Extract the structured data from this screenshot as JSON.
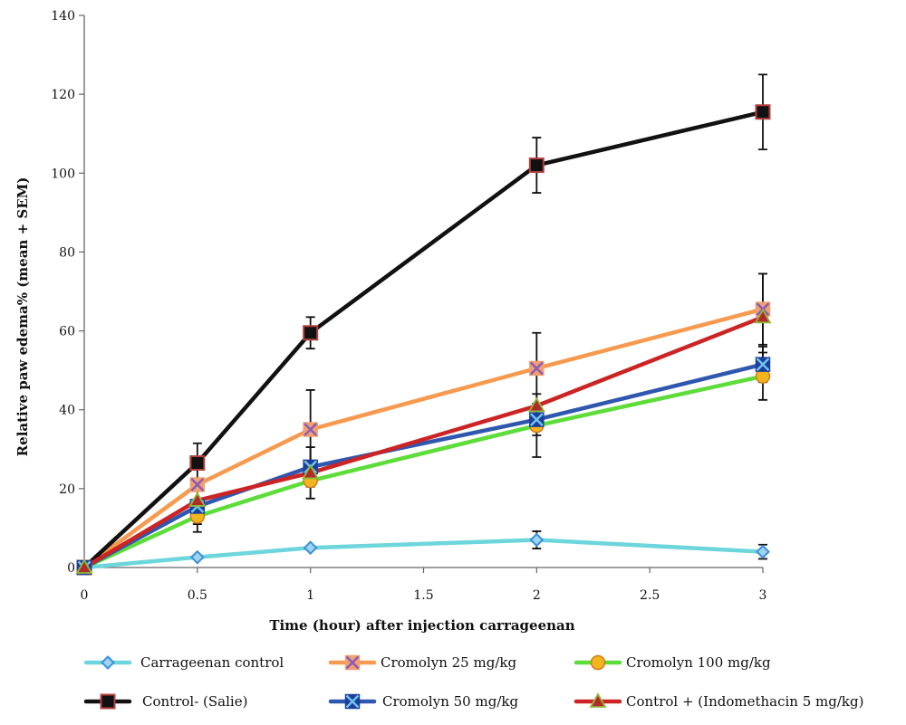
{
  "chart_data": {
    "type": "line",
    "xlabel": "Time (hour) after injection carrageenan",
    "ylabel": "Relative paw edema% (mean + SEM)",
    "xlim": [
      0,
      3
    ],
    "ylim": [
      0,
      140
    ],
    "x_ticks": [
      "0",
      "0.5",
      "1",
      "1.5",
      "2",
      "2.5",
      "3"
    ],
    "y_ticks": [
      "0",
      "20",
      "40",
      "60",
      "80",
      "100",
      "120",
      "140"
    ],
    "grid": false,
    "legend_position": "bottom",
    "x": [
      0,
      0.5,
      1,
      2,
      3
    ],
    "series": [
      {
        "name": "Carrageenan control",
        "color": "#6dd6dc",
        "marker": "diamond",
        "marker_fill": "#9ed4ee",
        "marker_stroke": "#3b8fd9",
        "values": [
          0,
          2.6,
          5,
          7,
          4
        ],
        "errors": [
          0,
          0,
          0,
          2.2,
          1.8
        ]
      },
      {
        "name": "Cromolyn 25 mg/kg",
        "color": "#f69a4f",
        "marker": "x-square",
        "marker_fill": "#f0a070",
        "marker_stroke": "#8a5ab8",
        "values": [
          0,
          21,
          35,
          50.5,
          65.5
        ],
        "errors": [
          0,
          0,
          10,
          9,
          9
        ]
      },
      {
        "name": "Cromolyn 100 mg/kg",
        "color": "#5ddc3a",
        "marker": "circle",
        "marker_fill": "#f3b51d",
        "marker_stroke": "#d17a1a",
        "values": [
          0,
          13,
          22,
          36,
          48.5
        ],
        "errors": [
          0,
          4,
          4.5,
          8,
          6
        ]
      },
      {
        "name": "Control- (Salie)",
        "color": "#111111",
        "marker": "square",
        "marker_fill": "#111111",
        "marker_stroke": "#b5413f",
        "values": [
          0,
          26.5,
          59.5,
          102,
          115.5
        ],
        "errors": [
          0,
          5,
          4,
          7,
          9.5
        ]
      },
      {
        "name": "Cromolyn 50 mg/kg",
        "color": "#2f57b0",
        "marker": "x-square",
        "marker_fill": "#1d3f9a",
        "marker_stroke": "#6fc6ef",
        "values": [
          0,
          15.5,
          25.5,
          37.5,
          51.5
        ],
        "errors": [
          0,
          4.5,
          5,
          4,
          4.5
        ]
      },
      {
        "name": "Control + (Indomethacin 5 mg/kg)",
        "color": "#cc2424",
        "marker": "triangle",
        "marker_fill": "#b12a2a",
        "marker_stroke": "#8fb83a",
        "values": [
          0,
          17,
          24,
          41,
          63.5
        ],
        "errors": [
          0,
          0,
          6.5,
          0,
          11
        ]
      }
    ]
  }
}
